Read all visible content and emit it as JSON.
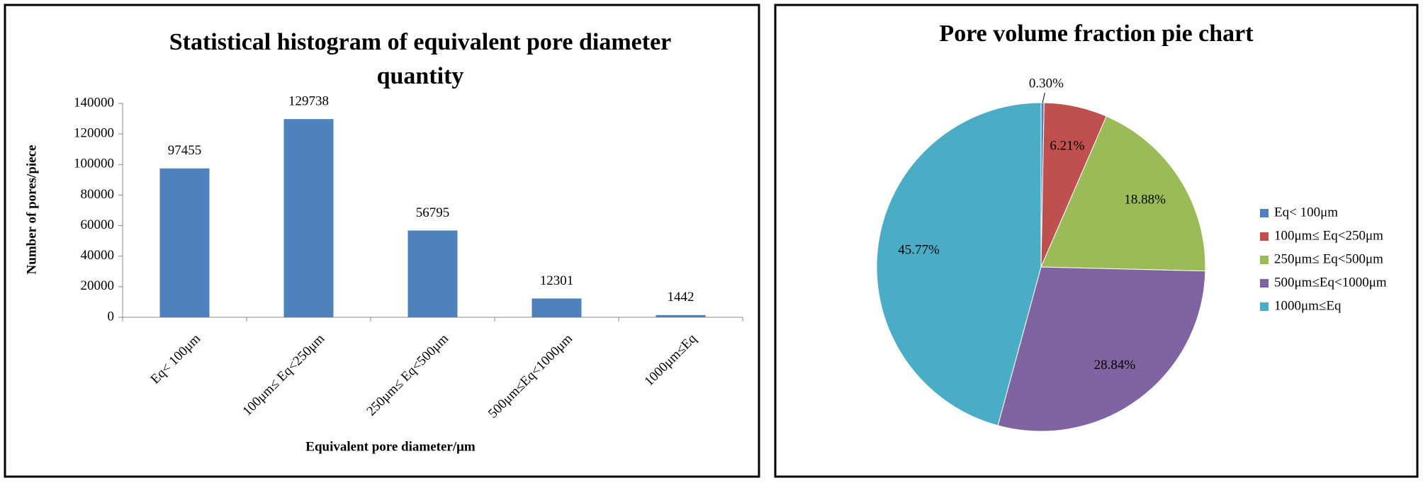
{
  "chart_data": [
    {
      "type": "bar",
      "title": "Statistical histogram of equivalent pore diameter quantity",
      "x_label": "Equivalent pore diameter/μm",
      "y_label": "Number of pores/piece",
      "categories": [
        "Eq< 100μm",
        "100μm≤ Eq<250μm",
        "250μm≤ Eq<500μm",
        "500μm≤Eq<1000μm",
        "1000μm≤Eq"
      ],
      "values": [
        97455,
        129738,
        56795,
        12301,
        1442
      ],
      "color": "#4f81bd",
      "ylim": [
        0,
        140000
      ],
      "yticks": [
        0,
        20000,
        40000,
        60000,
        80000,
        100000,
        120000,
        140000
      ]
    },
    {
      "type": "pie",
      "title": "Pore volume fraction pie chart",
      "categories": [
        "Eq< 100μm",
        "100μm≤ Eq<250μm",
        "250μm≤ Eq<500μm",
        "500μm≤Eq<1000μm",
        "1000μm≤Eq"
      ],
      "values": [
        0.3,
        6.21,
        18.88,
        28.84,
        45.77
      ],
      "value_labels": [
        "0.30%",
        "6.21%",
        "18.88%",
        "28.84%",
        "45.77%"
      ],
      "colors": [
        "#4f81bd",
        "#c0504d",
        "#9bbb59",
        "#8064a2",
        "#4bacc6"
      ],
      "legend": "right"
    }
  ]
}
